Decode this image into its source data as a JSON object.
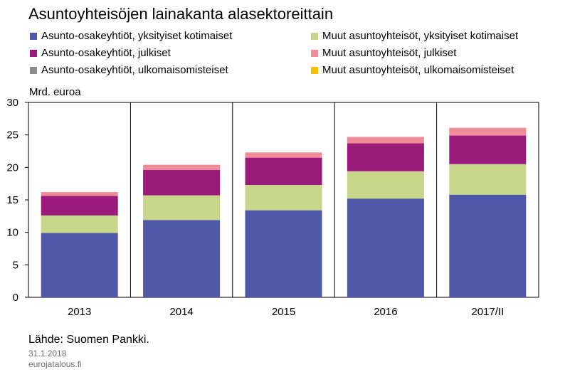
{
  "chart_data": {
    "type": "bar",
    "stacked": true,
    "title": "Asuntoyhteisöjen lainakanta alasektoreittain",
    "ylabel": "Mrd. euroa",
    "xlabel": "",
    "ylim": [
      0,
      30
    ],
    "yticks": [
      0,
      5,
      10,
      15,
      20,
      25,
      30
    ],
    "grid": true,
    "legend_position": "top",
    "categories": [
      "2013",
      "2014",
      "2015",
      "2016",
      "2017/II"
    ],
    "series": [
      {
        "name": "Asunto-osakeyhtiöt, yksityiset kotimaiset",
        "color": "#4f57a8",
        "values": [
          9.9,
          11.9,
          13.4,
          15.2,
          15.8
        ]
      },
      {
        "name": "Muut asuntoyhteisöt, yksityiset kotimaiset",
        "color": "#c8d68c",
        "values": [
          2.7,
          3.8,
          3.9,
          4.2,
          4.7
        ]
      },
      {
        "name": "Asunto-osakeyhtiöt, julkiset",
        "color": "#9a1b7c",
        "values": [
          3.0,
          3.9,
          4.2,
          4.3,
          4.4
        ]
      },
      {
        "name": "Muut asuntoyhteisöt, julkiset",
        "color": "#ee8c97",
        "values": [
          0.6,
          0.8,
          0.8,
          1.0,
          1.2
        ]
      },
      {
        "name": "Asunto-osakeyhtiöt, ulkomaisomisteiset",
        "color": "#8c8c8c",
        "values": [
          0,
          0,
          0,
          0,
          0
        ]
      },
      {
        "name": "Muut asuntoyhteisöt, ulkomaisomisteiset",
        "color": "#f5c000",
        "values": [
          0,
          0,
          0,
          0,
          0
        ]
      }
    ]
  },
  "source": "Lähde: Suomen Pankki.",
  "date": "31.1.2018",
  "site": "eurojatalous.fi"
}
